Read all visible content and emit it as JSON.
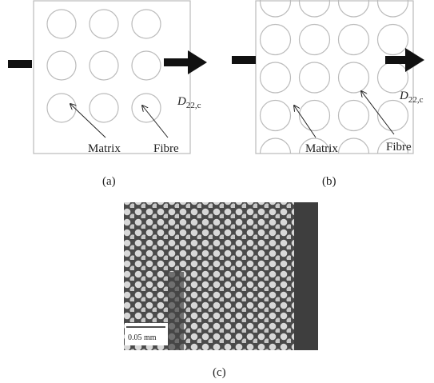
{
  "panels": [
    {
      "label": "(a)",
      "matrix": "Matrix",
      "fibre": "Fibre",
      "load": {
        "symbol": "D",
        "subscript": "22,c"
      }
    },
    {
      "label": "(b)",
      "matrix": "Matrix",
      "fibre": "Fibre",
      "load": {
        "symbol": "D",
        "subscript": "22,c"
      }
    }
  ],
  "micrograph": {
    "label": "(c)",
    "scale_bar": "0.05 mm"
  }
}
